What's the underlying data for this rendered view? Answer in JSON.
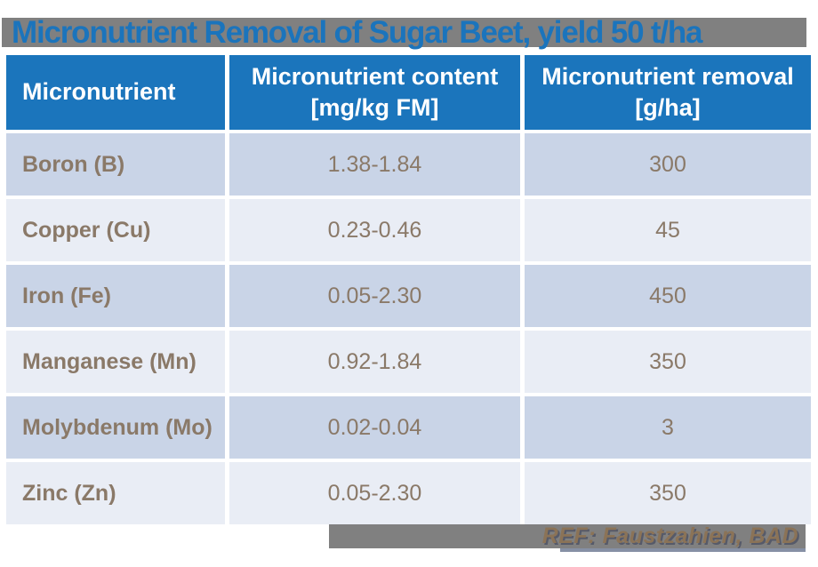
{
  "title": {
    "text": "Micronutrient Removal of Sugar Beet, yield 50 t/ha"
  },
  "table": {
    "columns": [
      {
        "label": "Micronutrient",
        "unit": ""
      },
      {
        "label": "Micronutrient content",
        "unit": "[mg/kg FM]"
      },
      {
        "label": "Micronutrient removal",
        "unit": "[g/ha]"
      }
    ],
    "rows": [
      {
        "nutrient": "Boron (B)",
        "content": "1.38-1.84",
        "removal": "300"
      },
      {
        "nutrient": "Copper (Cu)",
        "content": "0.23-0.46",
        "removal": "45"
      },
      {
        "nutrient": "Iron (Fe)",
        "content": "0.05-2.30",
        "removal": "450"
      },
      {
        "nutrient": "Manganese (Mn)",
        "content": "0.92-1.84",
        "removal": "350"
      },
      {
        "nutrient": "Molybdenum (Mo)",
        "content": "0.02-0.04",
        "removal": "3"
      },
      {
        "nutrient": "Zinc (Zn)",
        "content": "0.05-2.30",
        "removal": "350"
      }
    ]
  },
  "footer": {
    "ref_text": "REF: Faustzahien, BAD"
  },
  "colors": {
    "header_blue": "#1B75BC",
    "title_text_blue": "#1B74BC",
    "bar_gray": "#808080",
    "row_dark": "#C9D4E7",
    "row_light": "#E9EDF5",
    "body_text": "#8A7968",
    "ref_text": "#8B7357"
  },
  "chart_data": {
    "type": "table",
    "title": "Micronutrient Removal of Sugar Beet, yield 50 t/ha",
    "columns": [
      "Micronutrient",
      "Micronutrient content [mg/kg FM]",
      "Micronutrient removal [g/ha]"
    ],
    "rows": [
      [
        "Boron (B)",
        "1.38-1.84",
        300
      ],
      [
        "Copper (Cu)",
        "0.23-0.46",
        45
      ],
      [
        "Iron (Fe)",
        "0.05-2.30",
        450
      ],
      [
        "Manganese (Mn)",
        "0.92-1.84",
        350
      ],
      [
        "Molybdenum (Mo)",
        "0.02-0.04",
        3
      ],
      [
        "Zinc (Zn)",
        "0.05-2.30",
        350
      ]
    ]
  }
}
